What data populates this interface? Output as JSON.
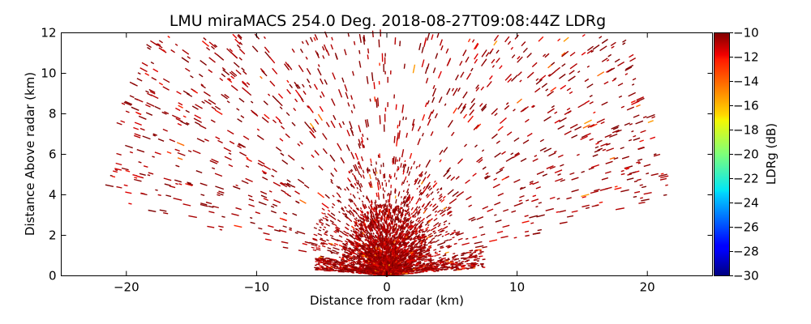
{
  "chart_data": {
    "type": "heatmap",
    "subtype": "radar-rhi",
    "title": "LMU miraMACS 254.0 Deg. 2018-08-27T09:08:44Z  LDRg",
    "xlabel": "Distance from radar (km)",
    "ylabel": "Distance Above radar  (km)",
    "xlim": [
      -25,
      25
    ],
    "ylim": [
      0,
      12
    ],
    "xticks": [
      -20,
      -10,
      0,
      10,
      20
    ],
    "xtick_labels": [
      "−20",
      "−10",
      "0",
      "10",
      "20"
    ],
    "yticks": [
      0,
      2,
      4,
      6,
      8,
      10,
      12
    ],
    "ytick_labels": [
      "0",
      "2",
      "4",
      "6",
      "8",
      "10",
      "12"
    ],
    "colorbar": {
      "label": "LDRg (dB)",
      "range": [
        -30,
        -10
      ],
      "ticks": [
        -10,
        -12,
        -14,
        -16,
        -18,
        -20,
        -22,
        -24,
        -26,
        -28,
        -30
      ],
      "tick_labels": [
        "−10",
        "−12",
        "−14",
        "−16",
        "−18",
        "−20",
        "−22",
        "−24",
        "−26",
        "−28",
        "−30"
      ],
      "colormap": "jet"
    },
    "scan": {
      "max_range_km": 22,
      "min_elevation_deg": 10,
      "max_elevation_deg": 170,
      "dense_near_range_km": 3.5,
      "typical_ldr_db": -11
    }
  }
}
